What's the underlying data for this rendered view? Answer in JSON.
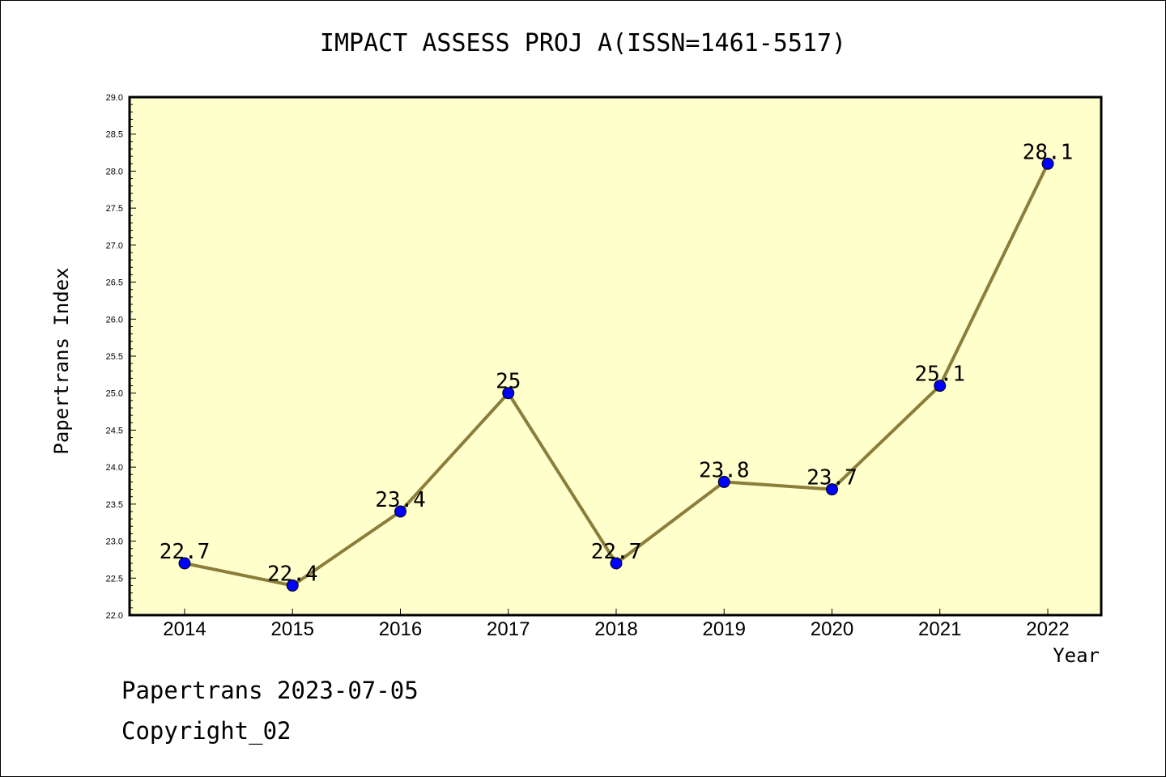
{
  "chart_data": {
    "type": "line",
    "title": "IMPACT ASSESS PROJ A(ISSN=1461-5517)",
    "xlabel": "Year",
    "ylabel": "Papertrans Index",
    "categories": [
      "2014",
      "2015",
      "2016",
      "2017",
      "2018",
      "2019",
      "2020",
      "2021",
      "2022"
    ],
    "values": [
      22.7,
      22.4,
      23.4,
      25,
      22.7,
      23.8,
      23.7,
      25.1,
      28.1
    ],
    "value_labels": [
      "22.7",
      "22.4",
      "23.4",
      "25",
      "22.7",
      "23.8",
      "23.7",
      "25.1",
      "28.1"
    ],
    "ylim": [
      22.0,
      29.0
    ],
    "y_ticks": [
      "22.0",
      "22.5",
      "23.0",
      "23.5",
      "24.0",
      "24.5",
      "25.0",
      "25.5",
      "26.0",
      "26.5",
      "27.0",
      "27.5",
      "28.0",
      "28.5",
      "29.0"
    ],
    "grid": false,
    "colors": {
      "plot_background": "#ffffcc",
      "line": "#8b7d3a",
      "marker": "#0000ff"
    }
  },
  "footer": {
    "line1": "Papertrans 2023-07-05",
    "line2": "Copyright_02"
  }
}
